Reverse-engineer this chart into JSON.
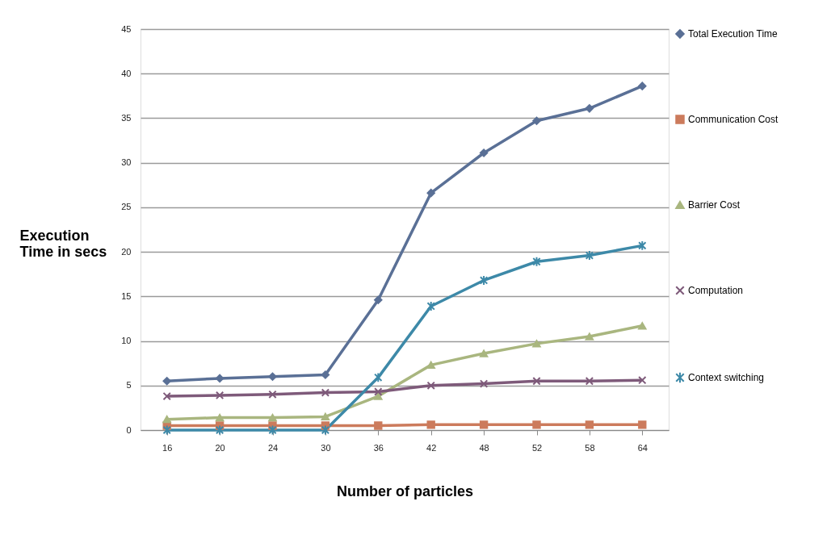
{
  "chart_data": {
    "type": "line",
    "xlabel": "Number of particles",
    "ylabel": "Execution Time in secs",
    "categories": [
      "16",
      "20",
      "24",
      "30",
      "36",
      "42",
      "48",
      "52",
      "58",
      "64"
    ],
    "series": [
      {
        "name": "Total Execution Time",
        "color": "#5a7096",
        "marker": "diamond",
        "values": [
          5.5,
          5.8,
          6.0,
          6.2,
          14.6,
          26.6,
          31.1,
          34.7,
          36.1,
          38.6
        ]
      },
      {
        "name": "Communication Cost",
        "color": "#cc7b5c",
        "marker": "square",
        "values": [
          0.5,
          0.5,
          0.5,
          0.5,
          0.5,
          0.6,
          0.6,
          0.6,
          0.6,
          0.6
        ]
      },
      {
        "name": "Barrier Cost",
        "color": "#a9b67f",
        "marker": "triangle",
        "values": [
          1.2,
          1.4,
          1.4,
          1.5,
          3.8,
          7.3,
          8.6,
          9.7,
          10.5,
          11.7
        ]
      },
      {
        "name": "Computation",
        "color": "#7e5a7a",
        "marker": "cross",
        "values": [
          3.8,
          3.9,
          4.0,
          4.2,
          4.3,
          5.0,
          5.2,
          5.5,
          5.5,
          5.6
        ]
      },
      {
        "name": "Context switching",
        "color": "#3d89a8",
        "marker": "cross",
        "values": [
          0,
          0,
          0,
          0,
          5.9,
          13.9,
          16.8,
          18.9,
          19.6,
          20.7
        ]
      }
    ],
    "ylim": [
      0,
      45
    ],
    "yticks": [
      0,
      5,
      10,
      15,
      20,
      25,
      30,
      35,
      40,
      45
    ],
    "grid": "y",
    "legend": "right",
    "line_style": "solid"
  }
}
